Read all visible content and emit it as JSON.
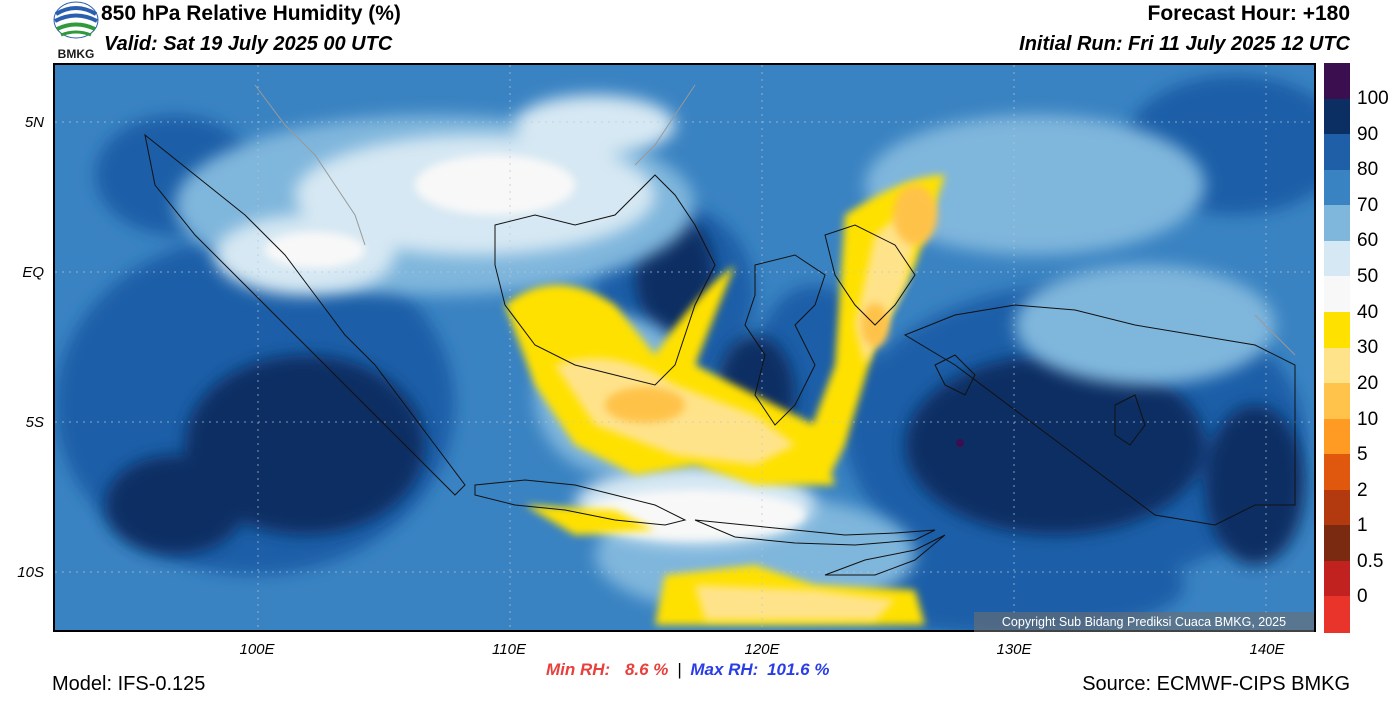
{
  "header": {
    "title": "850 hPa Relative Humidity (%)",
    "valid": "Valid: Sat 19 July 2025 00 UTC",
    "forecast_hour": "Forecast Hour: +180",
    "initial_run": "Initial Run: Fri 11 July 2025 12 UTC"
  },
  "logo": {
    "text": "BMKG",
    "icon": "bmkg-logo-icon"
  },
  "map": {
    "lat_labels": [
      "5N",
      "EQ",
      "5S",
      "10S"
    ],
    "lon_labels": [
      "100E",
      "110E",
      "120E",
      "130E",
      "140E"
    ],
    "copyright": "Copyright Sub Bidang Prediksi Cuaca BMKG, 2025"
  },
  "colorbar": {
    "labels": [
      "100",
      "90",
      "80",
      "70",
      "60",
      "50",
      "40",
      "30",
      "20",
      "10",
      "5",
      "2",
      "1",
      "0.5",
      "0"
    ],
    "colors": [
      "#3b0f4f",
      "#0b2f63",
      "#1f5fa8",
      "#3a83c2",
      "#7fb6dc",
      "#d6e8f3",
      "#f8f8f8",
      "#ffe100",
      "#ffe38a",
      "#ffc24a",
      "#ff9a22",
      "#e0580e",
      "#b23a0e",
      "#7a2a10",
      "#c1221f",
      "#e8342a"
    ]
  },
  "footer": {
    "min_label": "Min RH:",
    "min_value": "8.6 %",
    "separator": "|",
    "max_label": "Max RH:",
    "max_value": "101.6 %",
    "model": "Model: IFS-0.125",
    "source": "Source: ECMWF-CIPS BMKG"
  }
}
